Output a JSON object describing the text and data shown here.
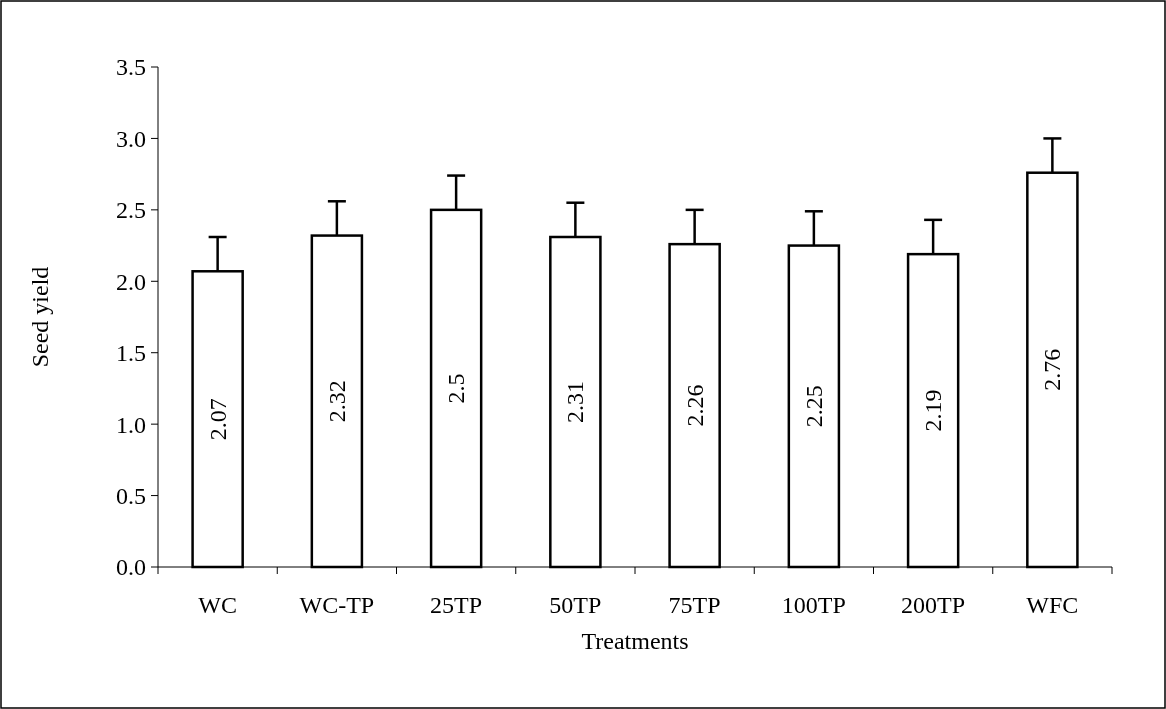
{
  "chart_data": {
    "type": "bar",
    "xlabel": "Treatments",
    "ylabel": "Seed yield",
    "categories": [
      "WC",
      "WC-TP",
      "25TP",
      "50TP",
      "75TP",
      "100TP",
      "200TP",
      "WFC"
    ],
    "values": [
      2.07,
      2.32,
      2.5,
      2.31,
      2.26,
      2.25,
      2.19,
      2.76
    ],
    "errors": [
      [
        2.07,
        2.31
      ],
      [
        2.32,
        2.56
      ],
      [
        2.5,
        2.74
      ],
      [
        2.31,
        2.55
      ],
      [
        2.26,
        2.5
      ],
      [
        2.25,
        2.49
      ],
      [
        2.19,
        2.43
      ],
      [
        2.76,
        3.0
      ]
    ],
    "color": "#ffffff",
    "data_labels": true,
    "grid": false,
    "ylim": [
      0,
      3.5
    ],
    "yticks": [
      {
        "value": 0,
        "label": "0.0"
      },
      {
        "value": 0.5,
        "label": "0.5"
      },
      {
        "value": 1,
        "label": "1.0"
      },
      {
        "value": 1.5,
        "label": "1.5"
      },
      {
        "value": 2,
        "label": "2.0"
      },
      {
        "value": 2.5,
        "label": "2.5"
      },
      {
        "value": 3,
        "label": "3.0"
      },
      {
        "value": 3.5,
        "label": "3.5"
      }
    ]
  }
}
